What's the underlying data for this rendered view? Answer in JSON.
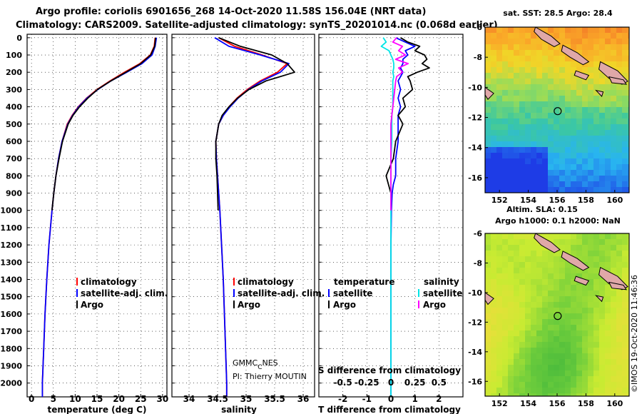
{
  "header": {
    "line1": "Argo profile: coriolis 6901656_268 14-Oct-2020 11.58S 156.04E (NRT data)",
    "line2": "Climatology: CARS2009. Satellite-adjusted climatology: synTS_20201014.nc (0.068d earlier)"
  },
  "depth_ticks": [
    "0",
    "100",
    "200",
    "300",
    "400",
    "500",
    "600",
    "700",
    "800",
    "900",
    "1000",
    "1100",
    "1200",
    "1300",
    "1400",
    "1500",
    "1600",
    "1700",
    "1800",
    "1900",
    "2000"
  ],
  "colors": {
    "climatology": "#ff0000",
    "satellite": "#0000ff",
    "argo": "#000000",
    "sat_salinity": "#00e5e5",
    "argo_salinity": "#ff00ff"
  },
  "legend_profiles": {
    "climatology": "climatology",
    "satellite": "satellite-adj. clim.",
    "argo": "Argo"
  },
  "legend_diff": {
    "temperature": "temperature",
    "salinity": "salinity",
    "satellite": "satellite",
    "argo": "Argo"
  },
  "credits": {
    "gmmc": "GMMC",
    "gmmc_sub": "C",
    "gmmc_rest": "NES",
    "pi": "PI: Thierry MOUTIN"
  },
  "imos_stamp": "©IMOS 19-Oct-2020 11:46:36",
  "chart_data": [
    {
      "type": "line",
      "title": "",
      "xlabel": "temperature (deg C)",
      "ylabel": "depth",
      "xlim": [
        -1,
        31
      ],
      "ylim": [
        2080,
        -20
      ],
      "xticks": [
        "0",
        "5",
        "10",
        "15",
        "20",
        "25",
        "30"
      ],
      "depth": [
        0,
        50,
        100,
        150,
        200,
        250,
        300,
        350,
        400,
        450,
        500,
        600,
        700,
        800,
        900,
        1000,
        1200,
        1400,
        1600,
        1800,
        2000,
        2080
      ],
      "series": [
        {
          "name": "climatology",
          "values": [
            28.3,
            28.1,
            27.2,
            24.8,
            21.3,
            18.0,
            15.0,
            12.6,
            10.7,
            9.3,
            8.2,
            7.0,
            6.2,
            5.6,
            5.1,
            4.7,
            4.0,
            3.5,
            3.1,
            2.8,
            2.5,
            2.5
          ]
        },
        {
          "name": "satellite-adj. clim.",
          "values": [
            28.6,
            28.3,
            27.6,
            25.3,
            21.8,
            18.2,
            15.2,
            12.7,
            10.8,
            9.4,
            8.3,
            7.0,
            6.2,
            5.6,
            5.1,
            4.7,
            4.0,
            3.5,
            3.1,
            2.8,
            2.5,
            2.5
          ]
        },
        {
          "name": "Argo",
          "values": [
            28.4,
            28.2,
            27.3,
            25.0,
            21.6,
            18.2,
            15.1,
            12.9,
            11.0,
            9.5,
            8.4,
            7.1,
            6.3,
            5.6,
            5.1,
            4.7
          ]
        }
      ]
    },
    {
      "type": "line",
      "xlabel": "salinity",
      "ylabel": "depth",
      "xlim": [
        33.7,
        36.2
      ],
      "ylim": [
        2080,
        -20
      ],
      "xticks": [
        "34",
        "34.5",
        "35",
        "35.5",
        "36"
      ],
      "depth": [
        0,
        50,
        100,
        150,
        200,
        250,
        300,
        350,
        400,
        450,
        500,
        600,
        700,
        800,
        900,
        1000,
        1200,
        1400,
        1600,
        1800,
        2000,
        2080
      ],
      "series": [
        {
          "name": "climatology",
          "values": [
            34.52,
            34.8,
            35.28,
            35.72,
            35.55,
            35.25,
            35.02,
            34.84,
            34.7,
            34.6,
            34.52,
            34.47,
            34.48,
            34.5,
            34.52,
            34.54,
            34.57,
            34.6,
            34.62,
            34.64,
            34.66,
            34.66
          ]
        },
        {
          "name": "satellite-adj. clim.",
          "values": [
            34.45,
            34.7,
            35.25,
            35.75,
            35.6,
            35.28,
            35.04,
            34.86,
            34.72,
            34.6,
            34.52,
            34.47,
            34.48,
            34.5,
            34.52,
            34.54,
            34.57,
            34.6,
            34.62,
            34.64,
            34.66,
            34.66
          ]
        },
        {
          "name": "Argo",
          "values": [
            34.52,
            34.9,
            35.45,
            35.72,
            35.85,
            35.35,
            35.05,
            34.85,
            34.7,
            34.58,
            34.52,
            34.47,
            34.47,
            34.49,
            34.5,
            34.51
          ]
        }
      ]
    },
    {
      "type": "line",
      "xlabel": "T difference from climatology",
      "x2label": "S difference from climatology",
      "ylabel": "depth",
      "xlim": [
        -3,
        3
      ],
      "x2lim": [
        -0.75,
        0.75
      ],
      "ylim": [
        2080,
        -20
      ],
      "xticks": [
        "-2",
        "-1",
        "0",
        "1",
        "2"
      ],
      "x2ticks": [
        "-0.5",
        "-0.25",
        "0",
        "0.25",
        "0.5"
      ],
      "depth": [
        0,
        25,
        50,
        75,
        100,
        125,
        150,
        175,
        200,
        225,
        250,
        300,
        350,
        400,
        450,
        500,
        600,
        700,
        800,
        850,
        900,
        1000,
        1200,
        1400,
        1600,
        1800,
        2000,
        2080
      ],
      "series": [
        {
          "name": "temperature satellite",
          "values": [
            0.2,
            0.6,
            1.0,
            0.6,
            0.7,
            0.5,
            0.5,
            0.4,
            0.5,
            0.4,
            0.3,
            0.4,
            0.3,
            0.4,
            0.3,
            0.3,
            0.3,
            0.2,
            0.2,
            0.1,
            0.05,
            0.02,
            0.0,
            0.0,
            0.0,
            0.0,
            0.0,
            0.0
          ]
        },
        {
          "name": "temperature Argo",
          "values": [
            0.4,
            0.7,
            1.2,
            1.0,
            1.4,
            1.5,
            1.3,
            1.6,
            1.1,
            0.7,
            0.8,
            0.9,
            0.5,
            0.6,
            0.3,
            0.5,
            0.2,
            0.1,
            -0.2,
            -0.1,
            0.0,
            0.0
          ]
        },
        {
          "name": "salinity satellite",
          "values": [
            -0.08,
            -0.05,
            -0.1,
            -0.02,
            0.0,
            0.02,
            0.03,
            0.03,
            0.02,
            0.03,
            0.02,
            0.02,
            0.02,
            0.02,
            0.01,
            0.01,
            0.01,
            0.0,
            0.0,
            0.0,
            0.0,
            0.0,
            0.0,
            0.0,
            0.0,
            0.0,
            0.0,
            0.0
          ]
        },
        {
          "name": "salinity Argo",
          "values": [
            0.06,
            0.02,
            0.12,
            0.08,
            0.15,
            0.05,
            0.18,
            0.08,
            0.12,
            0.06,
            0.05,
            0.04,
            0.03,
            0.02,
            0.01,
            0.0,
            0.0,
            0.0,
            0.0,
            0.0,
            0.0,
            0.0
          ]
        }
      ]
    },
    {
      "type": "heatmap",
      "title": "sat. SST: 28.5 Argo: 28.4",
      "xlim": [
        151,
        161
      ],
      "ylim": [
        -17,
        -6
      ],
      "xticks": [
        "152",
        "154",
        "156",
        "158",
        "160"
      ],
      "yticks": [
        "-6",
        "-8",
        "-10",
        "-12",
        "-14",
        "-16"
      ],
      "marker": {
        "lon": 156.04,
        "lat": -11.58
      }
    },
    {
      "type": "heatmap",
      "title": "Altim. SLA: 0.15",
      "subtitle": "Argo h1000: 0.1 h2000: NaN",
      "xlim": [
        151,
        161
      ],
      "ylim": [
        -17,
        -6
      ],
      "xticks": [
        "152",
        "154",
        "156",
        "158",
        "160"
      ],
      "yticks": [
        "-6",
        "-8",
        "-10",
        "-12",
        "-14",
        "-16"
      ],
      "marker": {
        "lon": 156.04,
        "lat": -11.58
      }
    }
  ]
}
